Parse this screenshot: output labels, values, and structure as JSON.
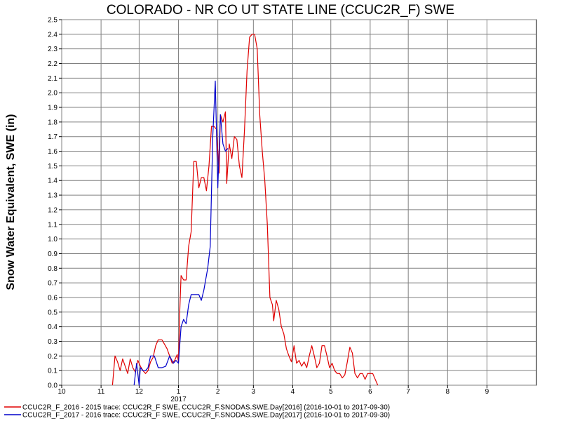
{
  "chart_data": {
    "type": "line",
    "title": "COLORADO - NR CO UT STATE LINE (CCUC2R_F) SWE",
    "ylabel": "Snow Water Equivalent, SWE (in)",
    "xlabel": "",
    "ylim": [
      0,
      2.5
    ],
    "yticks": [
      "0.0",
      "0.1",
      "0.2",
      "0.3",
      "0.4",
      "0.5",
      "0.6",
      "0.7",
      "0.8",
      "0.9",
      "1.0",
      "1.1",
      "1.2",
      "1.3",
      "1.4",
      "1.5",
      "1.6",
      "1.7",
      "1.8",
      "1.9",
      "2.0",
      "2.1",
      "2.2",
      "2.3",
      "2.4",
      "2.5"
    ],
    "x_range": [
      "2016-10-01",
      "2017-10-10"
    ],
    "xticks": [
      {
        "date": "2016-10-01",
        "label": "10"
      },
      {
        "date": "2016-11-01",
        "label": "11"
      },
      {
        "date": "2016-12-01",
        "label": "12"
      },
      {
        "date": "2017-01-01",
        "label": "1"
      },
      {
        "date": "2017-02-01",
        "label": "2"
      },
      {
        "date": "2017-03-01",
        "label": "3"
      },
      {
        "date": "2017-04-01",
        "label": "4"
      },
      {
        "date": "2017-05-01",
        "label": "5"
      },
      {
        "date": "2017-06-01",
        "label": "6"
      },
      {
        "date": "2017-07-01",
        "label": "7"
      },
      {
        "date": "2017-08-01",
        "label": "8"
      },
      {
        "date": "2017-09-01",
        "label": "9"
      }
    ],
    "year_label": {
      "date": "2017-01-01",
      "label": "2017"
    },
    "grid": true,
    "legend_position": "bottom",
    "series": [
      {
        "name": "CCUC2R_F_2016 - 2015 trace: CCUC2R_F SWE, CCUC2R_F.SNODAS.SWE.Day[2016] (2016-10-01 to 2017-09-30)",
        "color": "#e00000",
        "points": [
          [
            "2016-11-10",
            0.0
          ],
          [
            "2016-11-12",
            0.2
          ],
          [
            "2016-11-14",
            0.16
          ],
          [
            "2016-11-16",
            0.1
          ],
          [
            "2016-11-18",
            0.18
          ],
          [
            "2016-11-20",
            0.13
          ],
          [
            "2016-11-22",
            0.08
          ],
          [
            "2016-11-24",
            0.18
          ],
          [
            "2016-11-26",
            0.12
          ],
          [
            "2016-11-28",
            0.09
          ],
          [
            "2016-11-30",
            0.17
          ],
          [
            "2016-12-02",
            0.13
          ],
          [
            "2016-12-04",
            0.1
          ],
          [
            "2016-12-06",
            0.08
          ],
          [
            "2016-12-08",
            0.1
          ],
          [
            "2016-12-10",
            0.16
          ],
          [
            "2016-12-12",
            0.19
          ],
          [
            "2016-12-14",
            0.27
          ],
          [
            "2016-12-16",
            0.31
          ],
          [
            "2016-12-19",
            0.31
          ],
          [
            "2016-12-21",
            0.28
          ],
          [
            "2016-12-23",
            0.25
          ],
          [
            "2016-12-25",
            0.2
          ],
          [
            "2016-12-27",
            0.15
          ],
          [
            "2016-12-29",
            0.17
          ],
          [
            "2016-12-31",
            0.21
          ],
          [
            "2017-01-01",
            0.16
          ],
          [
            "2017-01-02",
            0.5
          ],
          [
            "2017-01-03",
            0.75
          ],
          [
            "2017-01-05",
            0.72
          ],
          [
            "2017-01-07",
            0.72
          ],
          [
            "2017-01-09",
            0.95
          ],
          [
            "2017-01-11",
            1.05
          ],
          [
            "2017-01-13",
            1.53
          ],
          [
            "2017-01-15",
            1.53
          ],
          [
            "2017-01-17",
            1.35
          ],
          [
            "2017-01-19",
            1.42
          ],
          [
            "2017-01-21",
            1.42
          ],
          [
            "2017-01-23",
            1.33
          ],
          [
            "2017-01-25",
            1.5
          ],
          [
            "2017-01-27",
            1.77
          ],
          [
            "2017-01-29",
            1.77
          ],
          [
            "2017-01-31",
            1.75
          ],
          [
            "2017-02-02",
            1.45
          ],
          [
            "2017-02-03",
            1.85
          ],
          [
            "2017-02-05",
            1.8
          ],
          [
            "2017-02-07",
            1.87
          ],
          [
            "2017-02-08",
            1.38
          ],
          [
            "2017-02-10",
            1.65
          ],
          [
            "2017-02-12",
            1.55
          ],
          [
            "2017-02-14",
            1.7
          ],
          [
            "2017-02-16",
            1.68
          ],
          [
            "2017-02-18",
            1.5
          ],
          [
            "2017-02-20",
            1.42
          ],
          [
            "2017-02-22",
            1.75
          ],
          [
            "2017-02-24",
            2.15
          ],
          [
            "2017-02-26",
            2.38
          ],
          [
            "2017-02-28",
            2.4
          ],
          [
            "2017-03-02",
            2.4
          ],
          [
            "2017-03-04",
            2.3
          ],
          [
            "2017-03-06",
            1.85
          ],
          [
            "2017-03-08",
            1.6
          ],
          [
            "2017-03-10",
            1.4
          ],
          [
            "2017-03-12",
            1.1
          ],
          [
            "2017-03-14",
            0.6
          ],
          [
            "2017-03-16",
            0.55
          ],
          [
            "2017-03-17",
            0.44
          ],
          [
            "2017-03-19",
            0.58
          ],
          [
            "2017-03-21",
            0.52
          ],
          [
            "2017-03-23",
            0.4
          ],
          [
            "2017-03-25",
            0.35
          ],
          [
            "2017-03-27",
            0.25
          ],
          [
            "2017-03-29",
            0.2
          ],
          [
            "2017-03-31",
            0.16
          ],
          [
            "2017-04-02",
            0.27
          ],
          [
            "2017-04-04",
            0.15
          ],
          [
            "2017-04-06",
            0.17
          ],
          [
            "2017-04-08",
            0.13
          ],
          [
            "2017-04-10",
            0.16
          ],
          [
            "2017-04-12",
            0.12
          ],
          [
            "2017-04-14",
            0.2
          ],
          [
            "2017-04-16",
            0.27
          ],
          [
            "2017-04-18",
            0.2
          ],
          [
            "2017-04-20",
            0.12
          ],
          [
            "2017-04-22",
            0.15
          ],
          [
            "2017-04-24",
            0.27
          ],
          [
            "2017-04-26",
            0.27
          ],
          [
            "2017-04-28",
            0.2
          ],
          [
            "2017-04-30",
            0.12
          ],
          [
            "2017-05-02",
            0.15
          ],
          [
            "2017-05-04",
            0.1
          ],
          [
            "2017-05-06",
            0.08
          ],
          [
            "2017-05-08",
            0.08
          ],
          [
            "2017-05-10",
            0.05
          ],
          [
            "2017-05-12",
            0.07
          ],
          [
            "2017-05-14",
            0.16
          ],
          [
            "2017-05-16",
            0.26
          ],
          [
            "2017-05-18",
            0.22
          ],
          [
            "2017-05-20",
            0.08
          ],
          [
            "2017-05-22",
            0.05
          ],
          [
            "2017-05-24",
            0.08
          ],
          [
            "2017-05-26",
            0.08
          ],
          [
            "2017-05-28",
            0.04
          ],
          [
            "2017-05-30",
            0.08
          ],
          [
            "2017-06-01",
            0.08
          ],
          [
            "2017-06-03",
            0.08
          ],
          [
            "2017-06-05",
            0.04
          ],
          [
            "2017-06-07",
            0.0
          ]
        ]
      },
      {
        "name": "CCUC2R_F_2017 - 2016 trace: CCUC2R_F SWE, CCUC2R_F.SNODAS.SWE.Day[2017] (2016-10-01 to 2017-09-30)",
        "color": "#0000cc",
        "points": [
          [
            "2016-11-27",
            0.0
          ],
          [
            "2016-11-29",
            0.15
          ],
          [
            "2016-12-01",
            0.0
          ],
          [
            "2016-12-02",
            0.12
          ],
          [
            "2016-12-04",
            0.1
          ],
          [
            "2016-12-06",
            0.1
          ],
          [
            "2016-12-08",
            0.12
          ],
          [
            "2016-12-10",
            0.2
          ],
          [
            "2016-12-13",
            0.2
          ],
          [
            "2016-12-16",
            0.12
          ],
          [
            "2016-12-19",
            0.12
          ],
          [
            "2016-12-22",
            0.13
          ],
          [
            "2016-12-25",
            0.2
          ],
          [
            "2016-12-28",
            0.15
          ],
          [
            "2016-12-30",
            0.17
          ],
          [
            "2017-01-01",
            0.15
          ],
          [
            "2017-01-03",
            0.4
          ],
          [
            "2017-01-05",
            0.45
          ],
          [
            "2017-01-07",
            0.42
          ],
          [
            "2017-01-09",
            0.55
          ],
          [
            "2017-01-11",
            0.62
          ],
          [
            "2017-01-14",
            0.62
          ],
          [
            "2017-01-17",
            0.62
          ],
          [
            "2017-01-19",
            0.58
          ],
          [
            "2017-01-21",
            0.65
          ],
          [
            "2017-01-24",
            0.8
          ],
          [
            "2017-01-26",
            0.95
          ],
          [
            "2017-01-28",
            1.7
          ],
          [
            "2017-01-30",
            2.08
          ],
          [
            "2017-02-01",
            1.35
          ],
          [
            "2017-02-03",
            1.85
          ],
          [
            "2017-02-05",
            1.65
          ],
          [
            "2017-02-07",
            1.6
          ],
          [
            "2017-02-09",
            1.62
          ]
        ]
      }
    ]
  }
}
